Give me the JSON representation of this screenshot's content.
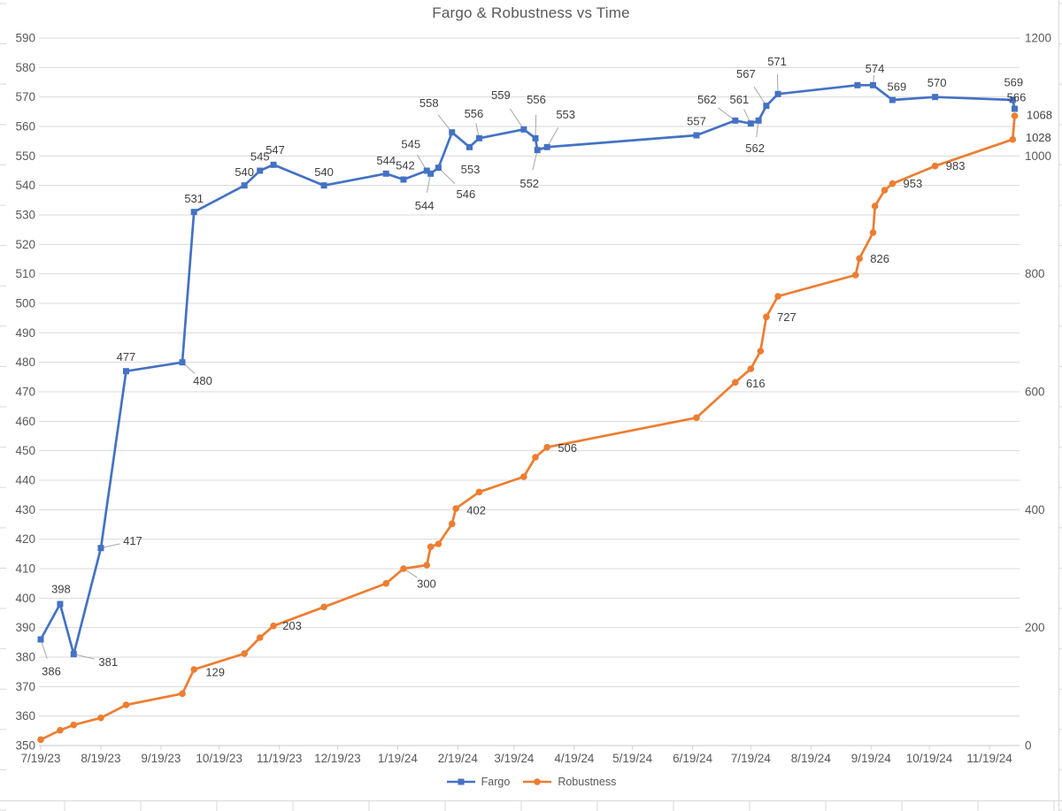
{
  "title": "Fargo & Robustness vs Time",
  "chart_data": {
    "type": "line",
    "title": "Fargo & Robustness vs Time",
    "grid": "horizontal",
    "legend_position": "bottom",
    "x_axis": {
      "type": "date",
      "start": "2023-07-19",
      "ticks": [
        {
          "date": "2023-07-19",
          "label": "7/19/23"
        },
        {
          "date": "2023-08-19",
          "label": "8/19/23"
        },
        {
          "date": "2023-09-19",
          "label": "9/19/23"
        },
        {
          "date": "2023-10-19",
          "label": "10/19/23"
        },
        {
          "date": "2023-11-19",
          "label": "11/19/23"
        },
        {
          "date": "2023-12-19",
          "label": "12/19/23"
        },
        {
          "date": "2024-01-19",
          "label": "1/19/24"
        },
        {
          "date": "2024-02-19",
          "label": "2/19/24"
        },
        {
          "date": "2024-03-19",
          "label": "3/19/24"
        },
        {
          "date": "2024-04-19",
          "label": "4/19/24"
        },
        {
          "date": "2024-05-19",
          "label": "5/19/24"
        },
        {
          "date": "2024-06-19",
          "label": "6/19/24"
        },
        {
          "date": "2024-07-19",
          "label": "7/19/24"
        },
        {
          "date": "2024-08-19",
          "label": "8/19/24"
        },
        {
          "date": "2024-09-19",
          "label": "9/19/24"
        },
        {
          "date": "2024-10-19",
          "label": "10/19/24"
        },
        {
          "date": "2024-11-19",
          "label": "11/19/24"
        }
      ]
    },
    "y_axis_left": {
      "min": 350,
      "max": 590,
      "step": 10,
      "series": "Fargo"
    },
    "y_axis_right": {
      "min": 0,
      "max": 1200,
      "step": 200,
      "series": "Robustness"
    },
    "colors": {
      "fargo": "#4472C4",
      "robustness": "#ED7D31",
      "grid": "#d9d9d9",
      "axis_text": "#595959",
      "label_text": "#404040",
      "leader": "#a6a6a6"
    },
    "series": [
      {
        "name": "Fargo",
        "color": "#4472C4",
        "marker": "square",
        "axis": "left",
        "points": [
          {
            "d": "2023-07-19",
            "v": 386,
            "label": "386",
            "dx": 12,
            "dy": 36,
            "leader": true
          },
          {
            "d": "2023-07-29",
            "v": 398,
            "label": "398",
            "dx": 1,
            "dy": -17
          },
          {
            "d": "2023-08-05",
            "v": 381,
            "label": "381",
            "dx": 39,
            "dy": 9,
            "leader": true
          },
          {
            "d": "2023-08-19",
            "v": 417,
            "label": "417",
            "dx": 36,
            "dy": -8,
            "leader": true
          },
          {
            "d": "2023-09-01",
            "v": 477,
            "label": "477",
            "dx": 0,
            "dy": -16
          },
          {
            "d": "2023-09-30",
            "v": 480,
            "label": "480",
            "dx": 23,
            "dy": 21,
            "leader": true
          },
          {
            "d": "2023-10-06",
            "v": 531,
            "label": "531",
            "dx": 0,
            "dy": -15
          },
          {
            "d": "2023-11-01",
            "v": 540,
            "label": "540",
            "dx": 0,
            "dy": -15
          },
          {
            "d": "2023-11-09",
            "v": 545,
            "label": "545",
            "dx": 0,
            "dy": -16
          },
          {
            "d": "2023-11-16",
            "v": 547,
            "label": "547",
            "dx": 2,
            "dy": -17
          },
          {
            "d": "2023-12-12",
            "v": 540,
            "label": "540",
            "dx": 0,
            "dy": -15
          },
          {
            "d": "2024-01-13",
            "v": 544,
            "label": "544",
            "dx": 0,
            "dy": -15
          },
          {
            "d": "2024-01-22",
            "v": 542,
            "label": "542",
            "dx": 2,
            "dy": -16
          },
          {
            "d": "2024-02-03",
            "v": 545,
            "label": "545",
            "dx": -18,
            "dy": -30,
            "leader": true
          },
          {
            "d": "2024-02-05",
            "v": 544,
            "label": "544",
            "dx": -7,
            "dy": 36,
            "leader": true
          },
          {
            "d": "2024-02-09",
            "v": 546,
            "label": "546",
            "dx": 31,
            "dy": 30,
            "leader": true
          },
          {
            "d": "2024-02-16",
            "v": 558,
            "label": "558",
            "dx": -26,
            "dy": -33,
            "leader": true
          },
          {
            "d": "2024-02-25",
            "v": 553,
            "label": "553",
            "dx": 1,
            "dy": 25
          },
          {
            "d": "2024-03-01",
            "v": 556,
            "label": "556",
            "dx": -6,
            "dy": -28,
            "leader": true
          },
          {
            "d": "2024-03-24",
            "v": 559,
            "label": "559",
            "dx": -26,
            "dy": -39,
            "leader": true
          },
          {
            "d": "2024-03-30",
            "v": 556,
            "label": "556",
            "dx": 1,
            "dy": -44,
            "leader": true
          },
          {
            "d": "2024-03-31",
            "v": 552,
            "label": "552",
            "dx": -9,
            "dy": 38,
            "leader": true
          },
          {
            "d": "2024-04-05",
            "v": 553,
            "label": "553",
            "dx": 21,
            "dy": -37,
            "leader": true
          },
          {
            "d": "2024-06-21",
            "v": 557,
            "label": "557",
            "dx": 0,
            "dy": -16
          },
          {
            "d": "2024-07-11",
            "v": 562,
            "label": "562",
            "dx": -32,
            "dy": -24,
            "leader": true
          },
          {
            "d": "2024-07-19",
            "v": 561,
            "label": "561",
            "dx": -13,
            "dy": -27,
            "leader": true
          },
          {
            "d": "2024-07-23",
            "v": 562,
            "label": "562",
            "dx": -4,
            "dy": 31,
            "leader": true
          },
          {
            "d": "2024-07-27",
            "v": 567,
            "label": "567",
            "dx": -23,
            "dy": -36,
            "leader": true
          },
          {
            "d": "2024-08-02",
            "v": 571,
            "label": "571",
            "dx": -1,
            "dy": -37,
            "leader": true
          },
          {
            "d": "2024-09-12",
            "v": 574
          },
          {
            "d": "2024-09-20",
            "v": 574,
            "label": "574",
            "dx": 2,
            "dy": -19,
            "leader": true
          },
          {
            "d": "2024-09-30",
            "v": 569,
            "label": "569",
            "dx": 5,
            "dy": -15
          },
          {
            "d": "2024-10-22",
            "v": 570,
            "label": "570",
            "dx": 2,
            "dy": -16
          },
          {
            "d": "2024-12-01",
            "v": 569,
            "label": "569",
            "dx": 1,
            "dy": -20
          },
          {
            "d": "2024-12-02",
            "v": 566,
            "label": "566",
            "dx": 2,
            "dy": -13
          }
        ]
      },
      {
        "name": "Robustness",
        "color": "#ED7D31",
        "marker": "circle",
        "axis": "right",
        "points": [
          {
            "d": "2023-07-19",
            "v": 10
          },
          {
            "d": "2023-07-29",
            "v": 26
          },
          {
            "d": "2023-08-05",
            "v": 35
          },
          {
            "d": "2023-08-19",
            "v": 47
          },
          {
            "d": "2023-09-01",
            "v": 69
          },
          {
            "d": "2023-09-30",
            "v": 88
          },
          {
            "d": "2023-10-06",
            "v": 129,
            "label": "129",
            "dx": 24,
            "dy": 3
          },
          {
            "d": "2023-11-01",
            "v": 156
          },
          {
            "d": "2023-11-09",
            "v": 183
          },
          {
            "d": "2023-11-16",
            "v": 203,
            "label": "203",
            "dx": 21,
            "dy": 0
          },
          {
            "d": "2023-12-12",
            "v": 235
          },
          {
            "d": "2024-01-13",
            "v": 275
          },
          {
            "d": "2024-01-22",
            "v": 300,
            "label": "300",
            "dx": 26,
            "dy": 17,
            "leader": true
          },
          {
            "d": "2024-02-03",
            "v": 306
          },
          {
            "d": "2024-02-05",
            "v": 337
          },
          {
            "d": "2024-02-09",
            "v": 342
          },
          {
            "d": "2024-02-16",
            "v": 376
          },
          {
            "d": "2024-02-18",
            "v": 402,
            "label": "402",
            "dx": 23,
            "dy": 2
          },
          {
            "d": "2024-03-01",
            "v": 430
          },
          {
            "d": "2024-03-24",
            "v": 456
          },
          {
            "d": "2024-03-30",
            "v": 489
          },
          {
            "d": "2024-04-05",
            "v": 506,
            "label": "506",
            "dx": 23,
            "dy": 1
          },
          {
            "d": "2024-06-21",
            "v": 556
          },
          {
            "d": "2024-07-11",
            "v": 616,
            "label": "616",
            "dx": 23,
            "dy": 1
          },
          {
            "d": "2024-07-19",
            "v": 639
          },
          {
            "d": "2024-07-24",
            "v": 669
          },
          {
            "d": "2024-07-27",
            "v": 727,
            "label": "727",
            "dx": 23,
            "dy": 0
          },
          {
            "d": "2024-08-02",
            "v": 762
          },
          {
            "d": "2024-09-11",
            "v": 798
          },
          {
            "d": "2024-09-13",
            "v": 826,
            "label": "826",
            "dx": 23,
            "dy": 0
          },
          {
            "d": "2024-09-20",
            "v": 870
          },
          {
            "d": "2024-09-21",
            "v": 915
          },
          {
            "d": "2024-09-26",
            "v": 942
          },
          {
            "d": "2024-09-30",
            "v": 953,
            "label": "953",
            "dx": 23,
            "dy": 0
          },
          {
            "d": "2024-10-22",
            "v": 983,
            "label": "983",
            "dx": 23,
            "dy": 0
          },
          {
            "d": "2024-12-01",
            "v": 1028,
            "label": "1028",
            "dx": 29,
            "dy": -2
          },
          {
            "d": "2024-12-02",
            "v": 1068,
            "label": "1068",
            "dx": 28,
            "dy": -1
          }
        ]
      }
    ]
  }
}
